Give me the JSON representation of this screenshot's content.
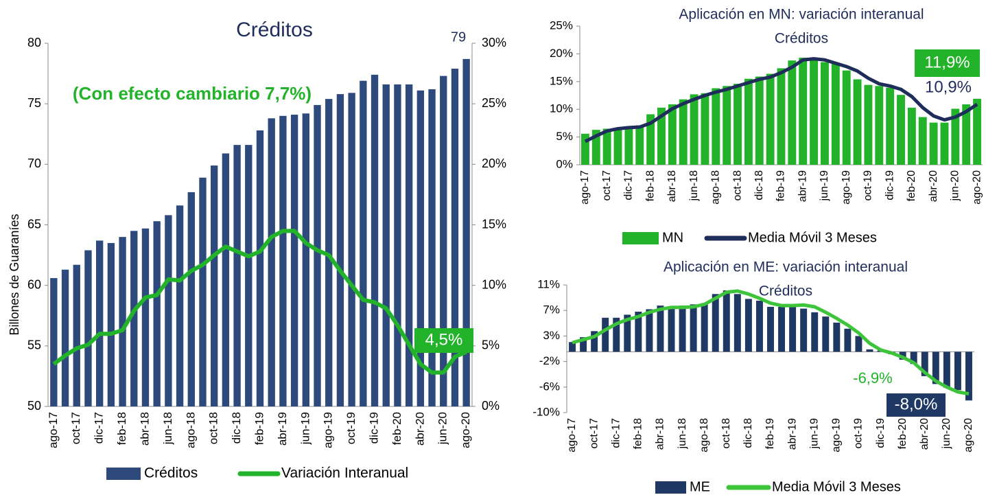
{
  "chart_data": [
    {
      "type": "bar",
      "title": "Créditos",
      "y_label": "Billones de Guaraníes",
      "categories": [
        "ago-17",
        null,
        "oct-17",
        null,
        "dic-17",
        null,
        "feb-18",
        null,
        "abr-18",
        null,
        "jun-18",
        null,
        "ago-18",
        null,
        "oct-18",
        null,
        "dic-18",
        null,
        "feb-19",
        null,
        "abr-19",
        null,
        "jun-19",
        null,
        "ago-19",
        null,
        "oct-19",
        null,
        "dic-19",
        null,
        "feb-20",
        null,
        "abr-20",
        null,
        "jun-20",
        null,
        "ago-20"
      ],
      "series": [
        {
          "name": "Créditos",
          "type": "bar",
          "color": "#2e4a7d",
          "values": [
            60.6,
            61.3,
            61.7,
            62.9,
            63.7,
            63.5,
            64.0,
            64.5,
            64.7,
            65.3,
            65.8,
            66.6,
            67.7,
            68.9,
            69.9,
            70.9,
            71.6,
            71.6,
            72.8,
            73.8,
            74.0,
            74.1,
            74.2,
            74.9,
            75.4,
            75.8,
            75.9,
            76.9,
            77.4,
            76.6,
            76.6,
            76.6,
            76.1,
            76.2,
            77.3,
            77.9,
            78.7
          ]
        },
        {
          "name": "Variación  Interanual",
          "type": "line",
          "axis": "y2",
          "color": "#22b32a",
          "values": [
            3.5,
            4.2,
            4.8,
            5.1,
            6.0,
            6.0,
            6.3,
            7.9,
            9.0,
            9.2,
            10.5,
            10.4,
            11.2,
            11.7,
            12.5,
            13.2,
            12.8,
            12.4,
            12.8,
            14.0,
            14.5,
            14.5,
            13.5,
            12.9,
            12.5,
            11.2,
            10.0,
            8.8,
            8.6,
            8.1,
            6.7,
            5.1,
            3.5,
            2.8,
            2.8,
            4.1,
            4.5
          ]
        }
      ],
      "ylim": [
        50,
        80
      ],
      "yticks": [
        50,
        55,
        60,
        65,
        70,
        75,
        80
      ],
      "y2lim": [
        0,
        30
      ],
      "y2ticks": [
        {
          "value": 0,
          "label": "0%"
        },
        {
          "value": 5,
          "label": "5%"
        },
        {
          "value": 10,
          "label": "10%"
        },
        {
          "value": 15,
          "label": "15%"
        },
        {
          "value": 20,
          "label": "20%"
        },
        {
          "value": 25,
          "label": "25%"
        },
        {
          "value": 30,
          "label": "30%"
        }
      ],
      "annotations": [
        "79",
        "(Con efecto cambiario 7,7%)",
        "4,5%"
      ]
    },
    {
      "type": "bar",
      "title": "Aplicación en MN: variación interanual",
      "subtitle": "Créditos",
      "categories": [
        "ago-17",
        null,
        "oct-17",
        null,
        "dic-17",
        null,
        "feb-18",
        null,
        "abr-18",
        null,
        "jun-18",
        null,
        "ago-18",
        null,
        "oct-18",
        null,
        "dic-18",
        null,
        "feb-19",
        null,
        "abr-19",
        null,
        "jun-19",
        null,
        "ago-19",
        null,
        "oct-19",
        null,
        "dic-19",
        null,
        "feb-20",
        null,
        "abr-20",
        null,
        "jun-20",
        null,
        "ago-20"
      ],
      "series": [
        {
          "name": "MN",
          "type": "bar",
          "color": "#22b32a",
          "values": [
            5.6,
            6.3,
            6.5,
            6.5,
            6.8,
            7.1,
            9.1,
            10.3,
            10.9,
            11.8,
            12.7,
            12.9,
            13.8,
            14.2,
            14.6,
            15.5,
            15.9,
            16.4,
            17.4,
            18.8,
            19.3,
            19.0,
            18.5,
            18.3,
            17.0,
            15.4,
            14.4,
            14.2,
            13.9,
            12.6,
            10.3,
            8.6,
            7.6,
            7.6,
            10.1,
            10.9,
            11.9
          ]
        },
        {
          "name": "Media Móvil 3 Meses",
          "type": "line",
          "color": "#1f2d5a",
          "values": [
            4.2,
            5.2,
            6.1,
            6.5,
            6.7,
            6.8,
            7.5,
            8.8,
            10.1,
            11.0,
            11.8,
            12.5,
            13.1,
            13.6,
            14.2,
            14.8,
            15.4,
            15.8,
            16.6,
            17.6,
            18.9,
            19.1,
            18.9,
            18.3,
            17.7,
            16.9,
            15.6,
            14.6,
            14.2,
            13.6,
            12.3,
            10.3,
            8.8,
            8.1,
            8.6,
            9.6,
            10.9
          ]
        }
      ],
      "ylim": [
        0,
        25
      ],
      "yticks": [
        {
          "value": 0,
          "label": "0%"
        },
        {
          "value": 5,
          "label": "5%"
        },
        {
          "value": 10,
          "label": "10%"
        },
        {
          "value": 15,
          "label": "15%"
        },
        {
          "value": 20,
          "label": "20%"
        },
        {
          "value": 25,
          "label": "25%"
        }
      ],
      "annotations": [
        "11,9%",
        "10,9%"
      ]
    },
    {
      "type": "bar",
      "title": "Aplicación en ME: variación interanual",
      "subtitle": "Créditos",
      "categories": [
        "ago-17",
        null,
        "oct-17",
        null,
        "dic-17",
        null,
        "feb-18",
        null,
        "abr-18",
        null,
        "jun-18",
        null,
        "ago-18",
        null,
        "oct-18",
        null,
        "dic-18",
        null,
        "feb-19",
        null,
        "abr-19",
        null,
        "jun-19",
        null,
        "ago-19",
        null,
        "oct-19",
        null,
        "dic-19",
        null,
        "feb-20",
        null,
        "abr-20",
        null,
        "jun-20",
        null,
        "ago-20"
      ],
      "series": [
        {
          "name": "ME",
          "type": "bar",
          "color": "#1f3864",
          "values": [
            1.6,
            2.4,
            3.4,
            5.6,
            5.6,
            6.1,
            6.6,
            7.0,
            7.6,
            7.2,
            7.6,
            7.8,
            8.0,
            9.5,
            10.1,
            9.5,
            8.7,
            8.4,
            7.4,
            7.4,
            7.4,
            7.1,
            6.5,
            5.8,
            4.8,
            3.8,
            2.6,
            0.4,
            0.2,
            -0.4,
            -1.3,
            -2.0,
            -4.0,
            -5.3,
            -5.9,
            -6.3,
            -8.0
          ]
        },
        {
          "name": "Media Móvil 3 Meses",
          "type": "line",
          "color": "#3ec43a",
          "values": [
            1.5,
            2.0,
            2.5,
            3.6,
            4.6,
            5.3,
            5.8,
            6.5,
            7.0,
            7.3,
            7.3,
            7.4,
            7.8,
            8.8,
            9.8,
            10.0,
            9.5,
            8.8,
            8.0,
            7.6,
            7.6,
            7.7,
            7.4,
            6.5,
            5.5,
            4.4,
            3.1,
            1.4,
            0.3,
            -0.2,
            -0.9,
            -1.8,
            -3.4,
            -4.8,
            -5.8,
            -6.6,
            -6.9
          ]
        }
      ],
      "ylim": [
        -10,
        11
      ],
      "yticks": [
        {
          "value": -10,
          "label": "-10%"
        },
        {
          "value": -5.8,
          "label": "-6%"
        },
        {
          "value": -1.6,
          "label": "-2%"
        },
        {
          "value": 2.6,
          "label": "3%"
        },
        {
          "value": 6.8,
          "label": "7%"
        },
        {
          "value": 11,
          "label": "11%"
        }
      ],
      "annotations": [
        "-6,9%",
        "-8,0%"
      ]
    }
  ]
}
